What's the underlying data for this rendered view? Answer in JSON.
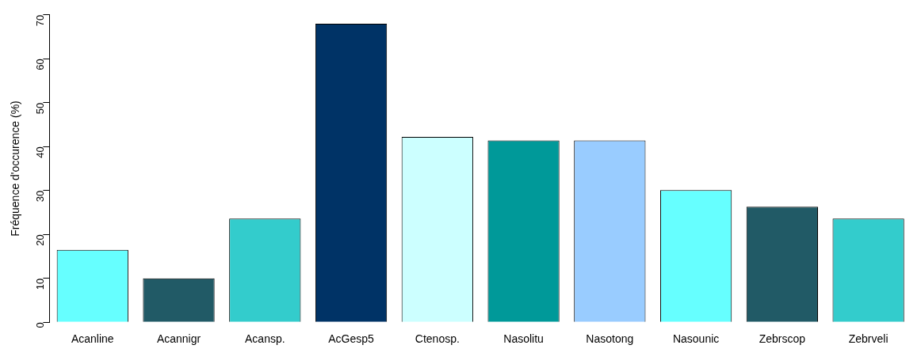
{
  "chart_data": {
    "type": "bar",
    "ylabel": "Fréquence d'occurence (%)",
    "categories": [
      "Acanline",
      "Acannigr",
      "Acansp.",
      "AcGesp5",
      "Ctenosp.",
      "Nasolitu",
      "Nasotong",
      "Nasounic",
      "Zebrscop",
      "Zebrveli"
    ],
    "values": [
      16.5,
      10,
      23.6,
      68,
      42.2,
      41.4,
      41.4,
      30.1,
      26.3,
      23.6
    ],
    "colors": [
      "#66ffff",
      "#215a66",
      "#33cccc",
      "#003366",
      "#ccffff",
      "#009999",
      "#99ccff",
      "#66ffff",
      "#215a66",
      "#33cccc"
    ],
    "ylim": [
      0,
      70
    ],
    "yticks": [
      0,
      10,
      20,
      30,
      40,
      50,
      60,
      70
    ],
    "grid": false,
    "legend": false
  }
}
